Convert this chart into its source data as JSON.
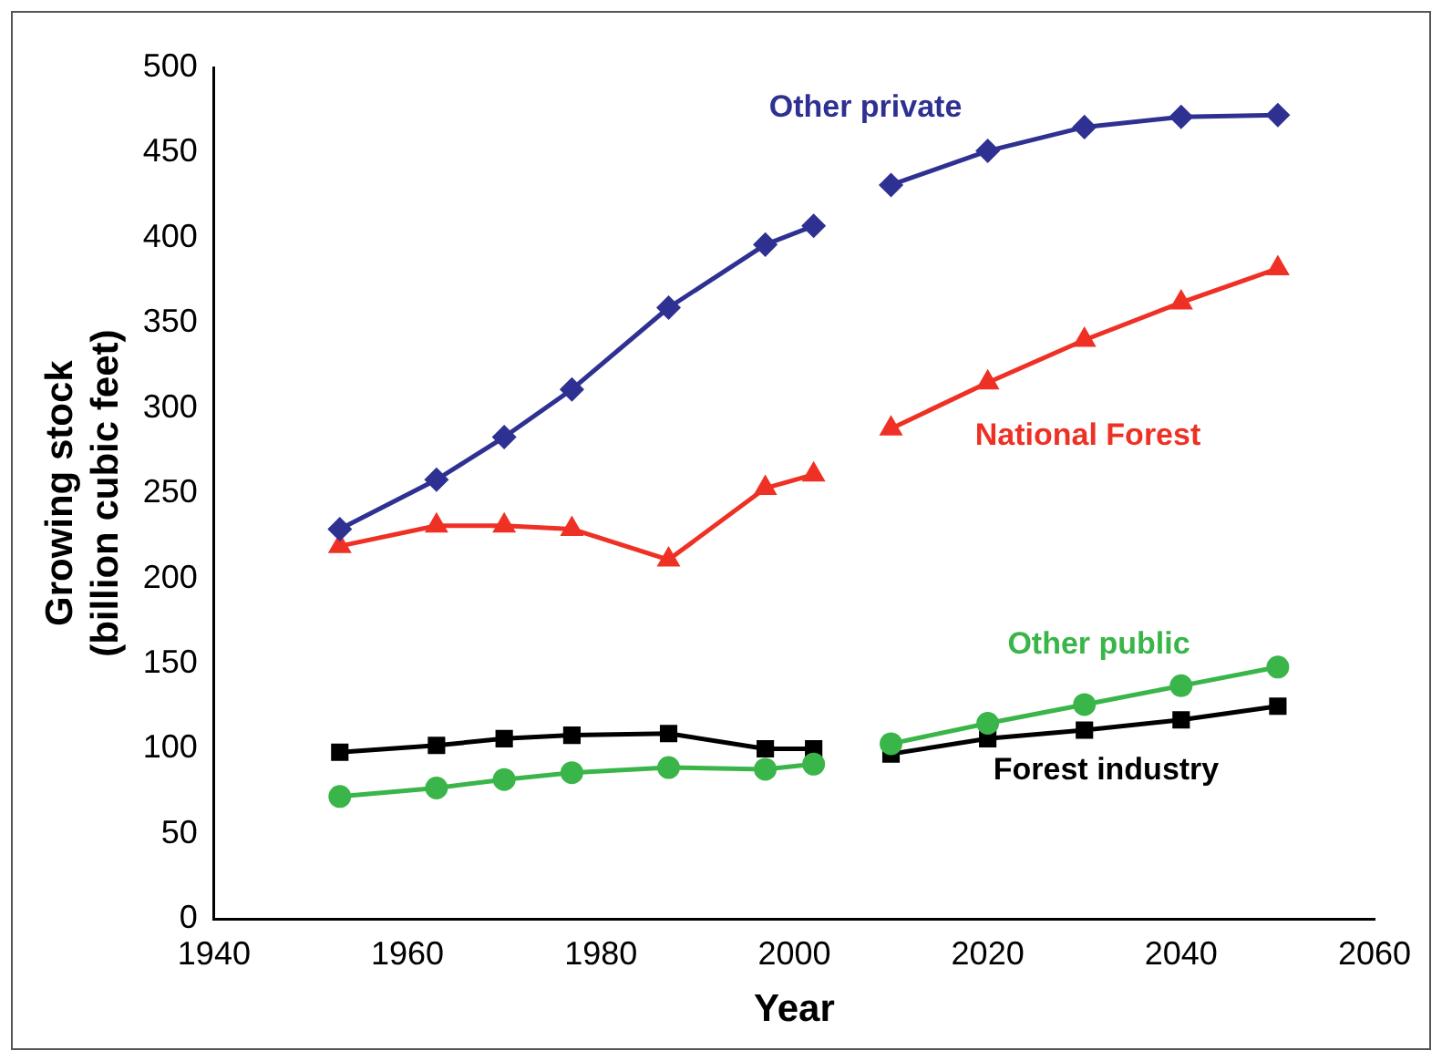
{
  "chart_data": {
    "type": "line",
    "xlabel": "Year",
    "ylabel": "Growing stock\n(billion cubic feet)",
    "x": [
      1953,
      1963,
      1970,
      1977,
      1987,
      1997,
      2002,
      2006,
      2010,
      2020,
      2030,
      2040,
      2050
    ],
    "xlim": [
      1940,
      2060
    ],
    "xticks": [
      1940,
      1960,
      1980,
      2000,
      2020,
      2040,
      2060
    ],
    "ylim": [
      0,
      500
    ],
    "yticks": [
      0,
      50,
      100,
      150,
      200,
      250,
      300,
      350,
      400,
      450,
      500
    ],
    "grid": false,
    "legend": false,
    "line_style": "solid",
    "series": [
      {
        "name": "Other private",
        "color": "#2e3192",
        "marker": "diamond",
        "values": [
          229,
          258,
          283,
          311,
          359,
          396,
          407,
          null,
          431,
          451,
          465,
          471,
          472
        ]
      },
      {
        "name": "National Forest",
        "color": "#ee3124",
        "marker": "triangle",
        "values": [
          219,
          231,
          231,
          229,
          211,
          253,
          261,
          null,
          288,
          315,
          340,
          362,
          382
        ]
      },
      {
        "name": "Other public",
        "color": "#3ab54a",
        "marker": "circle",
        "values": [
          72,
          77,
          82,
          86,
          89,
          88,
          91,
          null,
          103,
          115,
          126,
          137,
          148
        ]
      },
      {
        "name": "Forest industry",
        "color": "#000000",
        "marker": "square",
        "values": [
          98,
          102,
          106,
          108,
          109,
          100,
          100,
          null,
          97,
          106,
          111,
          117,
          125
        ]
      }
    ]
  }
}
